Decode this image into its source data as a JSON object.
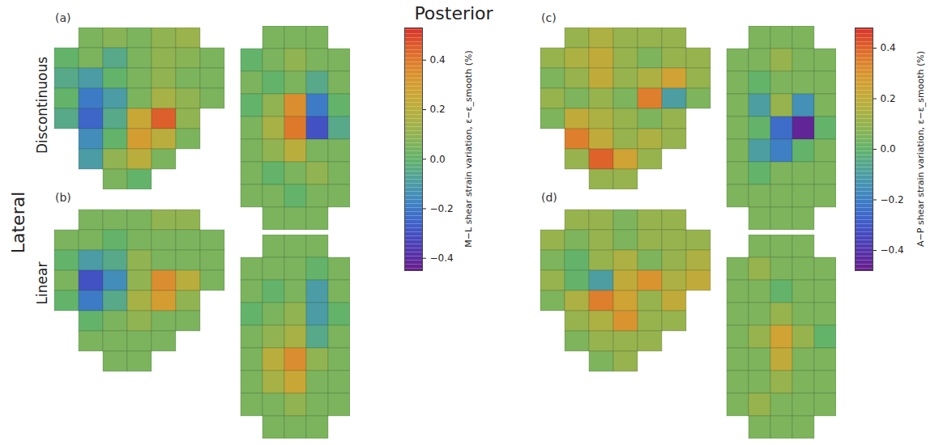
{
  "chart_data": {
    "type": "heatmap",
    "title": "Posterior",
    "side_label": "Lateral",
    "row_labels": [
      "Discontinuous",
      "Linear"
    ],
    "colorbars": [
      {
        "label": "M−L shear strain variation, ε−ε_smooth (%)",
        "range": [
          -0.45,
          0.53
        ],
        "ticks": [
          -0.4,
          -0.2,
          0,
          0.2,
          0.4
        ]
      },
      {
        "label": "A−P shear strain variation, ε−ε_smooth (%)",
        "range": [
          -0.48,
          0.48
        ],
        "ticks": [
          -0.4,
          -0.2,
          0,
          0.2,
          0.4
        ]
      }
    ],
    "panels": [
      {
        "letter": "(a)",
        "row": 0,
        "colorbar": 0,
        "views": [
          [
            [
              null,
              0.05,
              0.08,
              0.05,
              0.1,
              0.12,
              null
            ],
            [
              0.0,
              0.05,
              -0.05,
              0.05,
              0.1,
              0.08,
              0.05
            ],
            [
              -0.05,
              -0.1,
              0.0,
              0.05,
              0.1,
              0.05,
              0.05
            ],
            [
              0.0,
              -0.2,
              -0.1,
              0.05,
              0.15,
              0.1,
              0.05
            ],
            [
              -0.05,
              -0.25,
              -0.05,
              0.25,
              0.45,
              0.1,
              null
            ],
            [
              null,
              -0.15,
              0.0,
              0.3,
              0.2,
              0.05,
              null
            ],
            [
              null,
              -0.1,
              0.1,
              0.2,
              0.05,
              null,
              null
            ],
            [
              null,
              null,
              0.05,
              0.0,
              null,
              null,
              null
            ]
          ],
          [
            [
              null,
              0.05,
              0.05,
              0.05,
              null
            ],
            [
              0.0,
              0.05,
              0.1,
              0.05,
              0.05
            ],
            [
              0.05,
              0.0,
              0.05,
              -0.05,
              0.05
            ],
            [
              0.0,
              0.1,
              0.35,
              -0.2,
              0.0
            ],
            [
              0.05,
              0.15,
              0.4,
              -0.3,
              -0.05
            ],
            [
              0.05,
              0.1,
              0.2,
              0.05,
              0.05
            ],
            [
              0.05,
              0.0,
              0.05,
              0.1,
              0.05
            ],
            [
              0.05,
              0.05,
              0.0,
              0.05,
              0.05
            ],
            [
              null,
              0.05,
              0.05,
              0.05,
              null
            ]
          ]
        ]
      },
      {
        "letter": "(b)",
        "row": 1,
        "colorbar": 0,
        "views": [
          [
            [
              null,
              0.05,
              0.05,
              0.05,
              0.1,
              0.1,
              null
            ],
            [
              0.05,
              0.05,
              0.0,
              0.05,
              0.05,
              0.05,
              0.05
            ],
            [
              0.0,
              -0.1,
              -0.05,
              0.1,
              0.05,
              0.05,
              0.05
            ],
            [
              0.05,
              -0.3,
              -0.15,
              0.1,
              0.35,
              0.2,
              0.05
            ],
            [
              0.0,
              -0.2,
              -0.05,
              0.15,
              0.3,
              0.1,
              null
            ],
            [
              null,
              0.0,
              0.05,
              0.1,
              0.05,
              0.05,
              null
            ],
            [
              null,
              0.05,
              0.05,
              0.05,
              0.05,
              null,
              null
            ],
            [
              null,
              null,
              0.05,
              0.05,
              null,
              null,
              null
            ]
          ],
          [
            [
              null,
              0.05,
              0.05,
              0.05,
              null
            ],
            [
              0.05,
              0.05,
              0.05,
              0.0,
              0.05
            ],
            [
              0.05,
              0.0,
              0.05,
              -0.1,
              0.05
            ],
            [
              0.0,
              0.05,
              0.1,
              -0.1,
              0.0
            ],
            [
              0.05,
              0.1,
              0.15,
              -0.05,
              0.05
            ],
            [
              0.05,
              0.2,
              0.35,
              0.1,
              0.05
            ],
            [
              0.05,
              0.15,
              0.25,
              0.05,
              0.05
            ],
            [
              0.05,
              0.05,
              0.1,
              0.05,
              0.05
            ],
            [
              null,
              0.05,
              0.05,
              0.05,
              null
            ]
          ]
        ]
      },
      {
        "letter": "(c)",
        "row": 0,
        "colorbar": 1,
        "views": [
          [
            [
              null,
              0.1,
              0.15,
              0.1,
              0.1,
              0.1,
              null
            ],
            [
              0.1,
              0.15,
              0.2,
              0.1,
              0.05,
              0.1,
              0.1
            ],
            [
              0.05,
              0.1,
              0.2,
              0.1,
              0.15,
              0.25,
              0.1
            ],
            [
              0.1,
              0.05,
              0.1,
              0.05,
              0.35,
              -0.1,
              0.05
            ],
            [
              0.05,
              0.2,
              0.15,
              0.1,
              0.05,
              0.1,
              null
            ],
            [
              null,
              0.35,
              0.2,
              0.1,
              0.15,
              0.1,
              null
            ],
            [
              null,
              0.1,
              0.4,
              0.25,
              0.1,
              null,
              null
            ],
            [
              null,
              null,
              0.1,
              0.1,
              null,
              null,
              null
            ]
          ],
          [
            [
              null,
              0.05,
              0.05,
              0.05,
              null
            ],
            [
              0.05,
              0.05,
              0.1,
              0.05,
              0.05
            ],
            [
              0.05,
              0.0,
              0.05,
              0.05,
              0.05
            ],
            [
              0.05,
              -0.1,
              0.1,
              -0.15,
              0.05
            ],
            [
              0.05,
              0.0,
              -0.25,
              -0.45,
              0.0
            ],
            [
              0.05,
              -0.1,
              -0.2,
              0.0,
              0.05
            ],
            [
              0.05,
              0.0,
              0.05,
              0.05,
              0.05
            ],
            [
              0.05,
              0.05,
              0.05,
              0.05,
              0.05
            ],
            [
              null,
              0.05,
              0.05,
              0.05,
              null
            ]
          ]
        ]
      },
      {
        "letter": "(d)",
        "row": 1,
        "colorbar": 1,
        "views": [
          [
            [
              null,
              0.1,
              0.1,
              0.05,
              0.1,
              0.1,
              null
            ],
            [
              0.1,
              0.05,
              0.1,
              0.05,
              0.1,
              0.1,
              0.1
            ],
            [
              0.05,
              0.0,
              0.1,
              0.15,
              0.05,
              0.1,
              0.15
            ],
            [
              0.1,
              0.0,
              -0.1,
              0.2,
              0.3,
              0.15,
              0.2
            ],
            [
              0.05,
              0.15,
              0.35,
              0.25,
              0.1,
              0.2,
              null
            ],
            [
              null,
              0.1,
              0.15,
              0.3,
              0.1,
              0.1,
              null
            ],
            [
              null,
              0.05,
              0.1,
              0.1,
              0.1,
              null,
              null
            ],
            [
              null,
              null,
              0.05,
              0.1,
              null,
              null,
              null
            ]
          ],
          [
            [
              null,
              0.05,
              0.05,
              0.05,
              null
            ],
            [
              0.05,
              0.1,
              0.05,
              0.05,
              0.05
            ],
            [
              0.05,
              0.05,
              0.0,
              0.05,
              0.05
            ],
            [
              0.05,
              0.05,
              0.1,
              0.05,
              0.05
            ],
            [
              0.05,
              0.1,
              0.25,
              0.1,
              0.0
            ],
            [
              0.05,
              0.05,
              0.2,
              0.05,
              0.05
            ],
            [
              0.05,
              0.05,
              0.1,
              0.05,
              0.05
            ],
            [
              0.05,
              0.1,
              0.05,
              0.05,
              0.05
            ],
            [
              null,
              0.05,
              0.05,
              0.05,
              null
            ]
          ]
        ]
      }
    ]
  }
}
